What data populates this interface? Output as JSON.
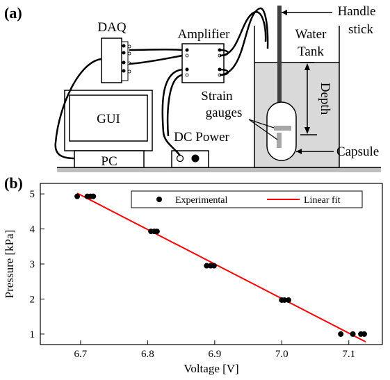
{
  "panel_a": {
    "panel_label": "(a)",
    "labels": {
      "daq": "DAQ",
      "amplifier": "Amplifier",
      "gui": "GUI",
      "pc": "PC",
      "dc_power": "DC Power",
      "handle_stick_line1": "Handle",
      "handle_stick_line2": "stick",
      "water_line1": "Water",
      "water_line2": "Tank",
      "strain_line1": "Strain",
      "strain_line2": "gauges",
      "depth": "Depth",
      "capsule": "Capsule"
    },
    "colors": {
      "water": "#d9d9d9",
      "gauge": "#a6a6a6",
      "ground": "#bfbfbf"
    }
  },
  "panel_b": {
    "panel_label": "(b)",
    "chart_data": {
      "type": "scatter",
      "xlabel": "Voltage [V]",
      "ylabel": "Pressure [kPa]",
      "xlim": [
        6.64,
        7.15
      ],
      "ylim": [
        0.7,
        5.3
      ],
      "xticks": [
        6.7,
        6.8,
        6.9,
        7.0,
        7.1
      ],
      "xtick_labels": [
        "6.7",
        "6.8",
        "6.9",
        "7.0",
        "7.1"
      ],
      "yticks": [
        1,
        2,
        3,
        4,
        5
      ],
      "ytick_labels": [
        "1",
        "2",
        "3",
        "4",
        "5"
      ],
      "legend_position": "top",
      "series": [
        {
          "name": "Experimental",
          "kind": "points",
          "color": "#000000",
          "points": [
            [
              6.695,
              4.93
            ],
            [
              6.71,
              4.93
            ],
            [
              6.715,
              4.93
            ],
            [
              6.719,
              4.93
            ],
            [
              6.805,
              3.93
            ],
            [
              6.81,
              3.93
            ],
            [
              6.814,
              3.93
            ],
            [
              6.888,
              2.95
            ],
            [
              6.894,
              2.95
            ],
            [
              6.899,
              2.95
            ],
            [
              7.0,
              1.97
            ],
            [
              7.004,
              1.97
            ],
            [
              7.01,
              1.97
            ],
            [
              7.088,
              1.0
            ],
            [
              7.106,
              1.0
            ],
            [
              7.118,
              1.0
            ],
            [
              7.123,
              1.0
            ]
          ]
        },
        {
          "name": "Linear fit",
          "kind": "line",
          "color": "#ff0000",
          "points": [
            [
              6.695,
              5.02
            ],
            [
              7.125,
              0.78
            ]
          ]
        }
      ]
    }
  }
}
